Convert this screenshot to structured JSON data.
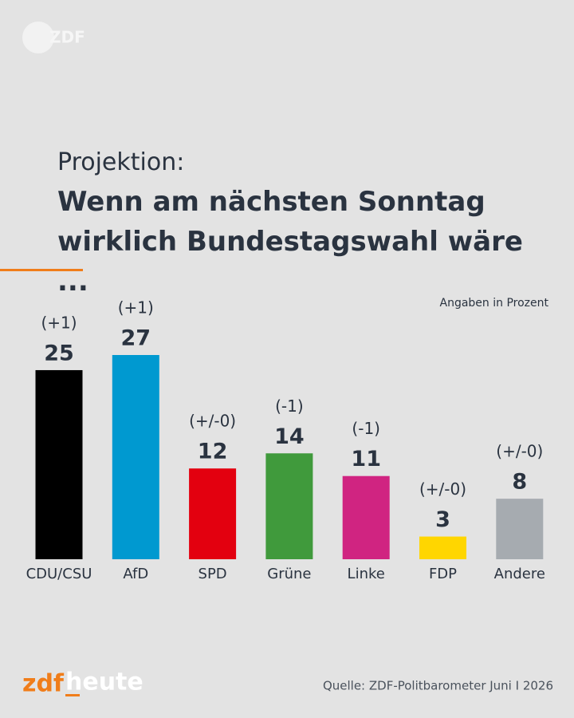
{
  "brand": "ZDF",
  "chart_data": {
    "type": "bar",
    "subtitle": "Projektion:",
    "title": "Wenn am nächsten Sonntag wirklich Bundestagswahl wäre ...",
    "unit_note": "Angaben in Prozent",
    "categories": [
      "CDU/CSU",
      "AfD",
      "SPD",
      "Grüne",
      "Linke",
      "FDP",
      "Andere"
    ],
    "values": [
      25,
      27,
      12,
      14,
      11,
      3,
      8
    ],
    "changes": [
      "(+1)",
      "(+1)",
      "(+/-0)",
      "(-1)",
      "(-1)",
      "(+/-0)",
      "(+/-0)"
    ],
    "colors": [
      "#000000",
      "#0099d0",
      "#e3000f",
      "#409a3c",
      "#d02481",
      "#ffd600",
      "#a6abb0"
    ]
  },
  "footer": {
    "logo_zdf": "zdf",
    "logo_heute": "heute",
    "source": "Quelle: ZDF-Politbarometer Juni I 2026"
  }
}
